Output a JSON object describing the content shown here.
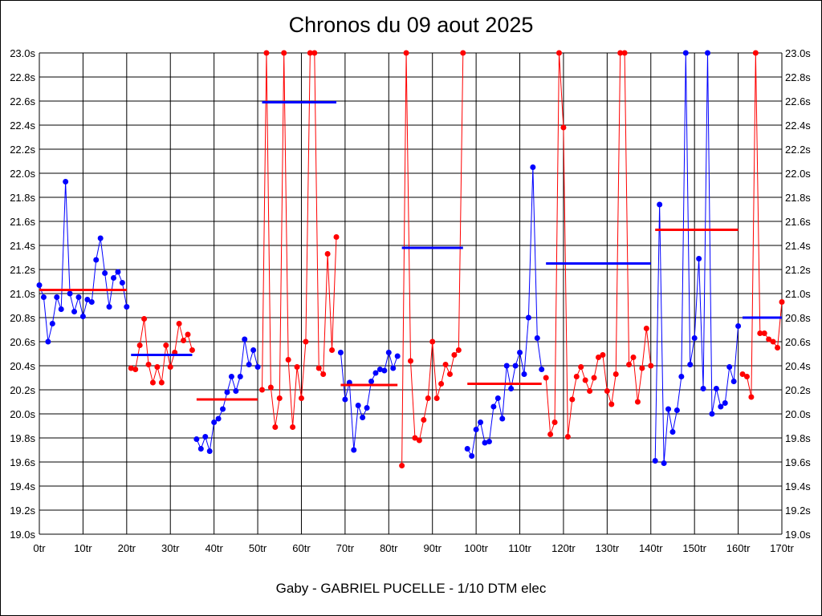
{
  "chart_data": {
    "type": "line",
    "title": "Chronos du 09 aout 2025",
    "xlabel": "Gaby - GABRIEL PUCELLE - 1/10 DTM elec",
    "ylabel": "",
    "xlim": [
      0,
      170
    ],
    "ylim": [
      19.0,
      23.0
    ],
    "grid": true,
    "x_ticks": [
      "0tr",
      "10tr",
      "20tr",
      "30tr",
      "40tr",
      "50tr",
      "60tr",
      "70tr",
      "80tr",
      "90tr",
      "100tr",
      "110tr",
      "120tr",
      "130tr",
      "140tr",
      "150tr",
      "160tr",
      "170tr"
    ],
    "y_ticks": [
      "19.0s",
      "19.2s",
      "19.4s",
      "19.6s",
      "19.8s",
      "20.0s",
      "20.2s",
      "20.4s",
      "20.6s",
      "20.8s",
      "21.0s",
      "21.2s",
      "21.4s",
      "21.6s",
      "21.8s",
      "22.0s",
      "22.2s",
      "22.4s",
      "22.6s",
      "22.8s",
      "23.0s"
    ],
    "colors": {
      "blue": "#0000ff",
      "red": "#ff0000"
    },
    "series": [
      {
        "name": "segment-1",
        "color": "blue",
        "start_lap": 0,
        "values": [
          21.07,
          20.97,
          20.6,
          20.75,
          20.97,
          20.87,
          21.93,
          21.0,
          20.85,
          20.97,
          20.81,
          20.95,
          20.93,
          21.28,
          21.46,
          21.17,
          20.89,
          21.13,
          21.18,
          21.09,
          20.89
        ],
        "average": 21.03
      },
      {
        "name": "segment-2",
        "color": "red",
        "start_lap": 21,
        "values": [
          20.38,
          20.37,
          20.57,
          20.79,
          20.41,
          20.26,
          20.39,
          20.26,
          20.57,
          20.39,
          20.51,
          20.75,
          20.61,
          20.66,
          20.53
        ],
        "average": 20.49,
        "avg_range": [
          21,
          35
        ]
      },
      {
        "name": "segment-3",
        "color": "blue",
        "start_lap": 36,
        "values": [
          19.79,
          19.71,
          19.81,
          19.69,
          19.93,
          19.96,
          20.04,
          20.18,
          20.31,
          20.19,
          20.31,
          20.62,
          20.41,
          20.53,
          20.39
        ],
        "average": 20.12,
        "avg_range": [
          36,
          50
        ]
      },
      {
        "name": "segment-4",
        "color": "red",
        "start_lap": 51,
        "values": [
          20.2,
          23.0,
          20.22,
          19.89,
          20.13,
          23.0,
          20.45,
          19.89,
          20.39,
          20.13,
          20.6,
          23.0,
          23.0,
          20.38,
          20.33,
          21.33,
          20.53,
          21.47
        ],
        "average": 22.59,
        "avg_range": [
          51,
          68
        ]
      },
      {
        "name": "segment-5",
        "color": "blue",
        "start_lap": 69,
        "values": [
          20.51,
          20.12,
          20.26,
          19.7,
          20.07,
          19.97,
          20.05,
          20.27,
          20.34,
          20.37,
          20.36,
          20.51,
          20.38,
          20.48
        ],
        "average": 20.24,
        "avg_range": [
          69,
          82
        ]
      },
      {
        "name": "segment-6",
        "color": "red",
        "start_lap": 83,
        "values": [
          19.57,
          23.0,
          20.44,
          19.8,
          19.78,
          19.95,
          20.13,
          20.6,
          20.13,
          20.25,
          20.41,
          20.33,
          20.49,
          20.53,
          23.0
        ],
        "average": 21.38,
        "avg_range": [
          83,
          97
        ]
      },
      {
        "name": "segment-7",
        "color": "blue",
        "start_lap": 98,
        "values": [
          19.71,
          19.65,
          19.87,
          19.93,
          19.76,
          19.77,
          20.06,
          20.13,
          19.96,
          20.4,
          20.21,
          20.4,
          20.51,
          20.33,
          20.8,
          22.05,
          20.63,
          20.37
        ],
        "average": 20.25,
        "avg_range": [
          98,
          115
        ]
      },
      {
        "name": "segment-8",
        "color": "red",
        "start_lap": 116,
        "values": [
          20.3,
          19.83,
          19.93,
          23.0,
          22.38,
          19.81,
          20.12,
          20.31,
          20.39,
          20.28,
          20.19,
          20.3,
          20.47,
          20.49,
          20.19,
          20.08,
          20.33,
          23.0,
          23.0,
          20.41,
          20.47,
          20.1,
          20.38,
          20.71,
          20.4
        ],
        "average": 21.25,
        "avg_range": [
          116,
          140
        ]
      },
      {
        "name": "segment-9",
        "color": "blue",
        "start_lap": 141,
        "values": [
          19.61,
          21.74,
          19.59,
          20.04,
          19.85,
          20.03,
          20.31,
          23.0,
          20.41,
          20.63,
          21.29,
          20.21,
          23.0,
          20.0,
          20.21,
          20.06,
          20.09,
          20.39,
          20.27,
          20.73
        ],
        "average": 21.53,
        "avg_range": [
          141,
          160
        ]
      },
      {
        "name": "segment-10",
        "color": "red",
        "start_lap": 161,
        "values": [
          20.33,
          20.31,
          20.14,
          23.0,
          20.67,
          20.67,
          20.62,
          20.6,
          20.55,
          20.93
        ],
        "average": 20.8,
        "avg_range": [
          161,
          170
        ]
      }
    ]
  }
}
